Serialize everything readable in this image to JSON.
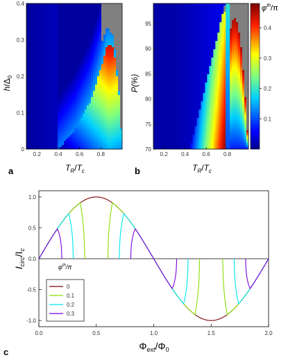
{
  "chart_data": [
    {
      "id": "a",
      "panel_label": "a",
      "type": "heatmap",
      "xlabel": {
        "main": "T",
        "sub": "R",
        "sep": "/",
        "main2": "T",
        "sub2": "c"
      },
      "ylabel": {
        "main": "h",
        "sep": "/Δ",
        "sub": "0"
      },
      "xlim": [
        0.1,
        1.0
      ],
      "ylim": [
        0.0,
        0.4
      ],
      "xticks": [
        "0.2",
        "0.4",
        "0.6",
        "0.8"
      ],
      "xtick_values": [
        0.2,
        0.4,
        0.6,
        0.8
      ],
      "yticks": [
        "0",
        "0.1",
        "0.2",
        "0.3",
        "0.4"
      ],
      "ytick_values": [
        0.0,
        0.1,
        0.2,
        0.3,
        0.4
      ],
      "grey_region_color": "#808080",
      "dome_boundary": {
        "x": [
          0.4,
          0.55,
          0.7,
          0.8,
          0.86,
          0.92,
          0.97,
          1.0
        ],
        "y": [
          0.0,
          0.05,
          0.13,
          0.22,
          0.29,
          0.28,
          0.15,
          0.0
        ]
      }
    },
    {
      "id": "b",
      "panel_label": "b",
      "type": "heatmap",
      "xlabel": {
        "main": "T",
        "sub": "R",
        "sep": "/",
        "main2": "T",
        "sub2": "c"
      },
      "ylabel": {
        "main": "P(%)"
      },
      "xlim": [
        0.1,
        1.0
      ],
      "ylim": [
        70,
        99
      ],
      "xticks": [
        "0.2",
        "0.4",
        "0.6",
        "0.8"
      ],
      "xtick_values": [
        0.2,
        0.4,
        0.6,
        0.8
      ],
      "yticks": [
        "70",
        "75",
        "80",
        "85",
        "90",
        "95"
      ],
      "ytick_values": [
        70,
        75,
        80,
        85,
        90,
        95
      ],
      "grey_region_color": "#808080",
      "colorbar": {
        "label_main": "φ",
        "label_sup": "th",
        "label_rest": "/π",
        "ticks": [
          "0.1",
          "0.2",
          "0.3",
          "0.4"
        ],
        "tick_values": [
          0.1,
          0.2,
          0.3,
          0.4
        ],
        "range": [
          0.0,
          0.48
        ]
      }
    },
    {
      "id": "c",
      "panel_label": "c",
      "type": "line",
      "xlabel": {
        "main": "Φ",
        "sub": "ext",
        "sep": "/Φ",
        "sub2": "0"
      },
      "ylabel": {
        "main": "I",
        "sub": "circ",
        "sep": "/I",
        "sub2": "c"
      },
      "xlim": [
        0.0,
        2.0
      ],
      "ylim": [
        -1.1,
        1.1
      ],
      "xticks": [
        "0.0",
        "0.5",
        "1.0",
        "1.5",
        "2.0"
      ],
      "xtick_values": [
        0.0,
        0.5,
        1.0,
        1.5,
        2.0
      ],
      "yticks": [
        "-1.0",
        "-0.5",
        "0.0",
        "0.5",
        "1.0"
      ],
      "ytick_values": [
        -1.0,
        -0.5,
        0.0,
        0.5,
        1.0
      ],
      "legend": {
        "title_main": "φ",
        "title_sup": "th",
        "title_rest": "/π",
        "placement": "lower-left"
      },
      "series": [
        {
          "name": "0",
          "phi_th": 0.0,
          "color": "#7b0000",
          "amplitude": 1.0
        },
        {
          "name": "0.1",
          "phi_th": 0.1,
          "color": "#88dd00",
          "amplitude": 1.0
        },
        {
          "name": "0.2",
          "phi_th": 0.2,
          "color": "#00e5ee",
          "amplitude": 1.0
        },
        {
          "name": "0.3",
          "phi_th": 0.3,
          "color": "#7a00e0",
          "amplitude": 1.0
        }
      ]
    }
  ]
}
